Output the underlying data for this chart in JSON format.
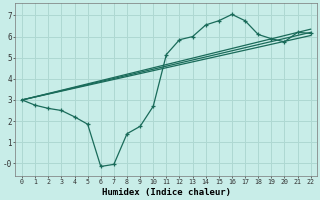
{
  "xlabel": "Humidex (Indice chaleur)",
  "bg_color": "#c8ede8",
  "grid_color": "#aed8d2",
  "line_color": "#1a6b5a",
  "xlim": [
    -0.5,
    22.5
  ],
  "ylim": [
    -0.6,
    7.6
  ],
  "xticks": [
    0,
    1,
    2,
    3,
    4,
    5,
    6,
    7,
    8,
    9,
    10,
    11,
    12,
    13,
    14,
    15,
    16,
    17,
    18,
    19,
    20,
    21,
    22
  ],
  "yticks": [
    0,
    1,
    2,
    3,
    4,
    5,
    6,
    7
  ],
  "ytick_labels": [
    "-0",
    "1",
    "2",
    "3",
    "4",
    "5",
    "6",
    "7"
  ],
  "curved_line": {
    "x": [
      0,
      1,
      2,
      3,
      4,
      5,
      6,
      7,
      8,
      9,
      10,
      11,
      12,
      13,
      14,
      15,
      16,
      17,
      18,
      19,
      20,
      21,
      22
    ],
    "y": [
      3.0,
      2.75,
      2.6,
      2.5,
      2.2,
      1.85,
      -0.15,
      -0.05,
      1.4,
      1.75,
      2.7,
      5.15,
      5.85,
      6.0,
      6.55,
      6.75,
      7.05,
      6.75,
      6.1,
      5.9,
      5.75,
      6.2,
      6.15
    ]
  },
  "linear_lines": [
    {
      "x0": 0,
      "y0": 3.0,
      "x1": 22,
      "y1": 6.05
    },
    {
      "x0": 0,
      "y0": 3.0,
      "x1": 22,
      "y1": 6.2
    },
    {
      "x0": 0,
      "y0": 3.0,
      "x1": 22,
      "y1": 6.35
    }
  ]
}
